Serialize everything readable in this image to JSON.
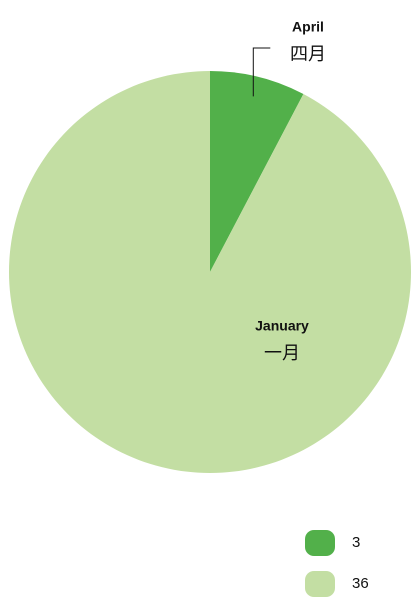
{
  "chart_data": {
    "type": "pie",
    "categories": [
      "April",
      "January"
    ],
    "categories_zh": [
      "四月",
      "一月"
    ],
    "values": [
      3,
      36
    ],
    "colors": [
      "#52b04a",
      "#c3dea3"
    ],
    "start_angle": 0,
    "direction": "clockwise",
    "legend": "bottom-right"
  }
}
